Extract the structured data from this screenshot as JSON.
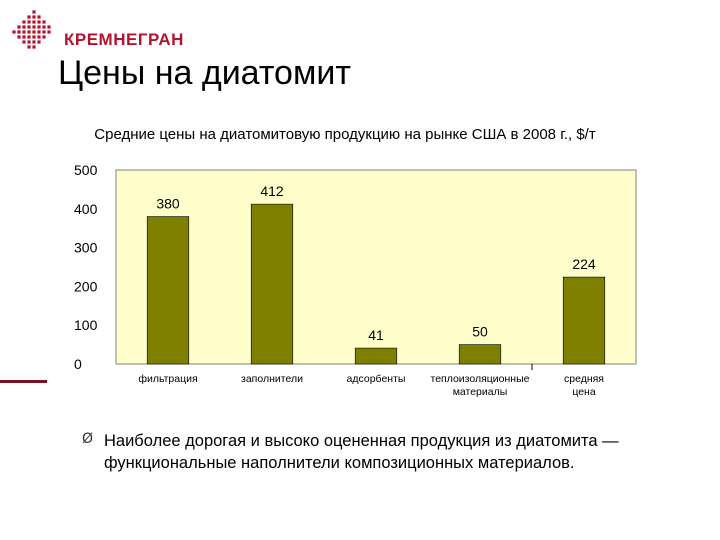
{
  "logo": {
    "text": "КРЕМНЕГРАН",
    "icon": "grid-logo-icon",
    "color": "#b5122d"
  },
  "slide": {
    "title": "Цены на диатомит"
  },
  "chart_data": {
    "type": "bar",
    "title": "Средние цены на диатомитовую продукцию на рынке США в 2008 г., $/т",
    "categories": [
      "фильтрация",
      "заполнители",
      "адсорбенты",
      "теплоизоляционные материалы",
      "средняя цена"
    ],
    "values": [
      380,
      412,
      41,
      50,
      224
    ],
    "value_labels": [
      "380",
      "412",
      "41",
      "50",
      "224"
    ],
    "yticks": [
      "0",
      "100",
      "200",
      "300",
      "400",
      "500"
    ],
    "ylim": [
      0,
      500
    ],
    "grid": false,
    "bar_color": "#808000",
    "plot_background": "#ffffcc"
  },
  "bullet": {
    "marker": "Ø",
    "text": "Наиболее дорогая и высоко оцененная продукция из диатомита — функциональные наполнители композиционных материалов."
  }
}
